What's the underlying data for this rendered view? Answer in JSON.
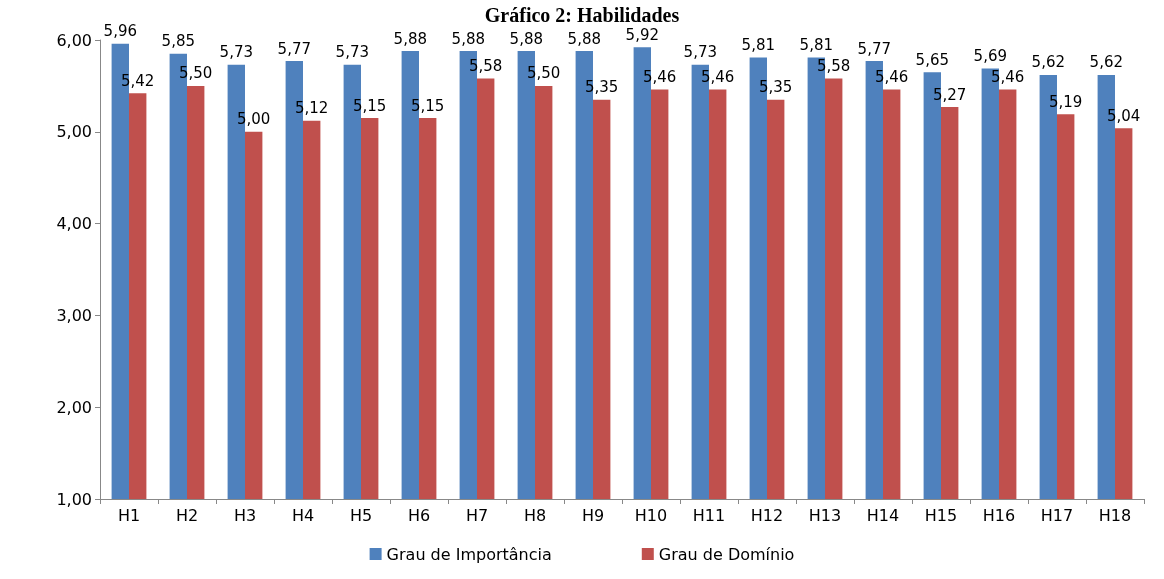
{
  "chart_data": {
    "type": "bar",
    "title": "Gráfico 2: Habilidades",
    "categories": [
      "H1",
      "H2",
      "H3",
      "H4",
      "H5",
      "H6",
      "H7",
      "H8",
      "H9",
      "H10",
      "H11",
      "H12",
      "H13",
      "H14",
      "H15",
      "H16",
      "H17",
      "H18"
    ],
    "series": [
      {
        "name": "Grau de Importância",
        "color": "#4f81bd",
        "values": [
          5.96,
          5.85,
          5.73,
          5.77,
          5.73,
          5.88,
          5.88,
          5.88,
          5.88,
          5.92,
          5.73,
          5.81,
          5.81,
          5.77,
          5.65,
          5.69,
          5.62,
          5.62
        ],
        "value_labels": [
          "5,96",
          "5,85",
          "5,73",
          "5,77",
          "5,73",
          "5,88",
          "5,88",
          "5,88",
          "5,88",
          "5,92",
          "5,73",
          "5,81",
          "5,81",
          "5,77",
          "5,65",
          "5,69",
          "5,62",
          "5,62"
        ]
      },
      {
        "name": "Grau de Domínio",
        "color": "#c0504d",
        "values": [
          5.42,
          5.5,
          5.0,
          5.12,
          5.15,
          5.15,
          5.58,
          5.5,
          5.35,
          5.46,
          5.46,
          5.35,
          5.58,
          5.46,
          5.27,
          5.46,
          5.19,
          5.04
        ],
        "value_labels": [
          "5,42",
          "5,50",
          "5,00",
          "5,12",
          "5,15",
          "5,15",
          "5,58",
          "5,50",
          "5,35",
          "5,46",
          "5,46",
          "5,35",
          "5,58",
          "5,46",
          "5,27",
          "5,46",
          "5,19",
          "5,04"
        ]
      }
    ],
    "ylim": [
      1,
      6
    ],
    "yticks": [
      {
        "value": 1,
        "label": "1,00"
      },
      {
        "value": 2,
        "label": "2,00"
      },
      {
        "value": 3,
        "label": "3,00"
      },
      {
        "value": 4,
        "label": "4,00"
      },
      {
        "value": 5,
        "label": "5,00"
      },
      {
        "value": 6,
        "label": "6,00"
      }
    ],
    "grid": false,
    "legend": "bottom"
  }
}
